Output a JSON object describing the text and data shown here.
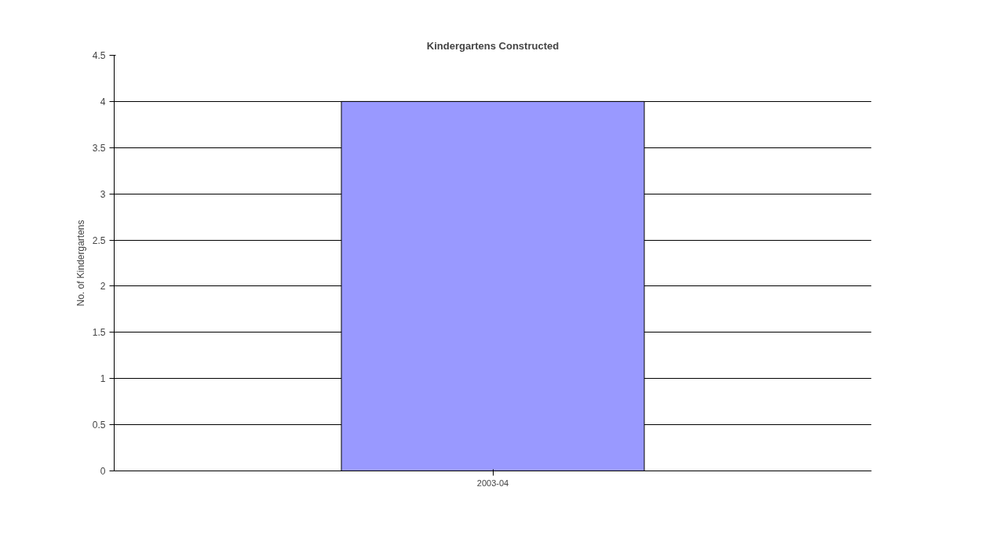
{
  "chart_data": {
    "type": "bar",
    "title": "Kindergartens Constructed",
    "ylabel": "No. of Kindergartens",
    "categories": [
      "2003-04"
    ],
    "values": [
      4
    ],
    "color": "#9999ff",
    "ylim": [
      0,
      4.5
    ],
    "yticks": [
      0,
      0.5,
      1,
      1.5,
      2,
      2.5,
      3,
      3.5,
      4,
      4.5
    ],
    "grid": "y"
  }
}
